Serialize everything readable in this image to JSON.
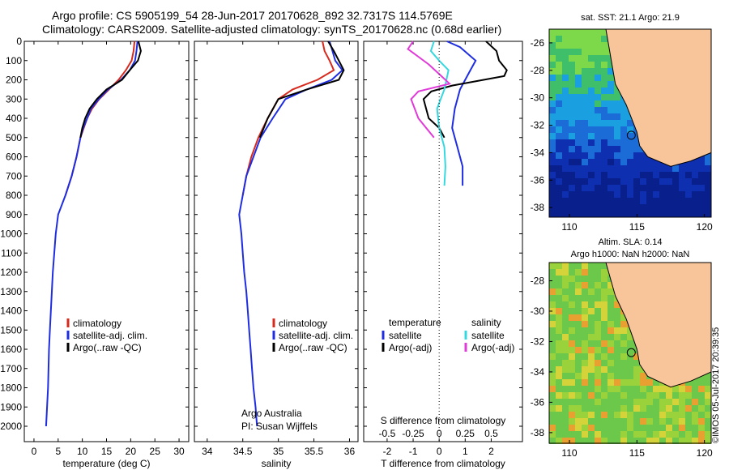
{
  "header": {
    "line1": "Argo profile: CS 5905199_54 28-Jun-2017 20170628_892 32.7317S 114.5769E",
    "line2": "Climatology: CARS2009. Satellite-adjusted climatology: synTS_20170628.nc (0.68d earlier)"
  },
  "colors": {
    "climatology": "#d62a1e",
    "satellite": "#1f2de0",
    "argo": "#000000",
    "sal_satellite": "#36d8e0",
    "sal_argo": "#e03ad8",
    "land": "#f8c49a"
  },
  "depth_ticks": [
    "0",
    "100",
    "200",
    "300",
    "400",
    "500",
    "600",
    "700",
    "800",
    "900",
    "1000",
    "1100",
    "1200",
    "1300",
    "1400",
    "1500",
    "1600",
    "1700",
    "1800",
    "1900",
    "2000"
  ],
  "chart_data": [
    {
      "type": "line",
      "xlabel": "temperature (deg C)",
      "xticks": [
        "0",
        "5",
        "10",
        "15",
        "20",
        "25",
        "30"
      ],
      "xlim": [
        -2,
        32
      ],
      "ylim": [
        0,
        2080
      ],
      "legend": [
        "climatology",
        "satellite-adj. clim.",
        "Argo(..raw -QC)"
      ],
      "series": [
        {
          "name": "climatology",
          "points": [
            [
              20.8,
              0
            ],
            [
              20.6,
              50
            ],
            [
              20.2,
              100
            ],
            [
              19.0,
              150
            ],
            [
              17.5,
              200
            ],
            [
              15.5,
              250
            ],
            [
              13.5,
              300
            ],
            [
              12.0,
              350
            ],
            [
              11.0,
              400
            ],
            [
              10.3,
              450
            ],
            [
              9.6,
              500
            ],
            [
              8.8,
              600
            ],
            [
              7.8,
              700
            ],
            [
              6.5,
              800
            ]
          ]
        },
        {
          "name": "satellite-adj. clim.",
          "points": [
            [
              21.4,
              0
            ],
            [
              21.2,
              50
            ],
            [
              20.9,
              100
            ],
            [
              19.8,
              150
            ],
            [
              18.0,
              200
            ],
            [
              15.3,
              250
            ],
            [
              13.4,
              300
            ],
            [
              11.8,
              350
            ],
            [
              11.0,
              400
            ],
            [
              10.2,
              450
            ],
            [
              9.6,
              500
            ],
            [
              8.8,
              600
            ],
            [
              7.8,
              700
            ],
            [
              6.5,
              800
            ],
            [
              5.0,
              900
            ],
            [
              4.5,
              1000
            ],
            [
              4.2,
              1100
            ],
            [
              3.9,
              1200
            ],
            [
              3.7,
              1300
            ],
            [
              3.5,
              1400
            ],
            [
              3.3,
              1500
            ],
            [
              3.1,
              1600
            ],
            [
              3.0,
              1700
            ],
            [
              2.9,
              1800
            ],
            [
              2.7,
              1900
            ],
            [
              2.5,
              2000
            ]
          ]
        },
        {
          "name": "Argo(..raw -QC)",
          "points": [
            [
              21.6,
              0
            ],
            [
              22.1,
              50
            ],
            [
              21.5,
              100
            ],
            [
              19.8,
              150
            ],
            [
              18.2,
              200
            ],
            [
              15.0,
              250
            ],
            [
              13.0,
              300
            ],
            [
              11.5,
              350
            ],
            [
              10.6,
              400
            ],
            [
              10.0,
              450
            ],
            [
              9.6,
              500
            ]
          ]
        }
      ]
    },
    {
      "type": "line",
      "xlabel": "salinity",
      "xticks": [
        "34",
        "34.5",
        "35",
        "35.5",
        "36"
      ],
      "xlim": [
        33.82,
        36.12
      ],
      "ylim": [
        0,
        2080
      ],
      "legend": [
        "climatology",
        "satellite-adj. clim.",
        "Argo(..raw -QC)"
      ],
      "annotation_1": "Argo Australia",
      "annotation_2": "PI: Susan Wijffels",
      "series": [
        {
          "name": "climatology",
          "points": [
            [
              35.62,
              0
            ],
            [
              35.65,
              50
            ],
            [
              35.72,
              100
            ],
            [
              35.78,
              150
            ],
            [
              35.55,
              200
            ],
            [
              35.2,
              250
            ],
            [
              35.0,
              300
            ],
            [
              34.85,
              400
            ],
            [
              34.72,
              500
            ],
            [
              34.62,
              600
            ],
            [
              34.55,
              700
            ],
            [
              34.5,
              800
            ]
          ]
        },
        {
          "name": "satellite-adj. clim.",
          "points": [
            [
              35.72,
              0
            ],
            [
              35.76,
              50
            ],
            [
              35.8,
              100
            ],
            [
              35.9,
              150
            ],
            [
              35.75,
              200
            ],
            [
              35.4,
              250
            ],
            [
              35.1,
              300
            ],
            [
              34.92,
              400
            ],
            [
              34.75,
              500
            ],
            [
              34.65,
              600
            ],
            [
              34.55,
              700
            ],
            [
              34.5,
              800
            ],
            [
              34.45,
              900
            ],
            [
              34.48,
              1000
            ],
            [
              34.5,
              1100
            ],
            [
              34.52,
              1200
            ],
            [
              34.55,
              1300
            ],
            [
              34.57,
              1400
            ],
            [
              34.59,
              1500
            ],
            [
              34.61,
              1600
            ],
            [
              34.63,
              1700
            ],
            [
              34.65,
              1800
            ],
            [
              34.68,
              1900
            ],
            [
              34.7,
              2000
            ]
          ]
        },
        {
          "name": "Argo(..raw -QC)",
          "points": [
            [
              35.7,
              0
            ],
            [
              35.78,
              50
            ],
            [
              35.85,
              100
            ],
            [
              35.92,
              150
            ],
            [
              35.85,
              200
            ],
            [
              35.4,
              250
            ],
            [
              35.0,
              300
            ],
            [
              34.85,
              400
            ],
            [
              34.74,
              500
            ]
          ]
        }
      ]
    },
    {
      "type": "line",
      "xlabel": "T difference from climatology",
      "xlabel_top": "S difference from climatology",
      "xticks": [
        "-2",
        "-1",
        "0",
        "1",
        "2"
      ],
      "xticks_top": [
        "-0.5",
        "-0.25",
        "0",
        "0.25",
        "0.5"
      ],
      "xlim": [
        -2.9,
        3.2
      ],
      "ylim": [
        0,
        2080
      ],
      "legend_temperature": "temperature",
      "legend_salinity": "salinity",
      "legend_items": [
        "satellite",
        "Argo(-adj)",
        "satellite",
        "Argo(-adj)"
      ],
      "series": [
        {
          "name": "satellite",
          "points": [
            [
              0.3,
              0
            ],
            [
              0.8,
              30
            ],
            [
              1.4,
              100
            ],
            [
              1.2,
              150
            ],
            [
              0.8,
              250
            ],
            [
              0.6,
              350
            ],
            [
              0.5,
              450
            ],
            [
              0.7,
              550
            ],
            [
              0.9,
              650
            ],
            [
              0.9,
              750
            ]
          ]
        },
        {
          "name": "Argo(-adj)",
          "points": [
            [
              1.8,
              0
            ],
            [
              2.2,
              50
            ],
            [
              2.3,
              100
            ],
            [
              2.6,
              150
            ],
            [
              2.5,
              180
            ],
            [
              0.5,
              230
            ],
            [
              -0.3,
              260
            ],
            [
              -0.6,
              300
            ],
            [
              -0.4,
              400
            ],
            [
              0.0,
              450
            ],
            [
              0.2,
              500
            ]
          ]
        },
        {
          "name": "satellite",
          "points": [
            [
              -0.05,
              0
            ],
            [
              -0.08,
              50
            ],
            [
              0.0,
              100
            ],
            [
              0.09,
              150
            ],
            [
              0.05,
              250
            ],
            [
              -0.02,
              350
            ],
            [
              0.0,
              450
            ],
            [
              0.05,
              550
            ],
            [
              0.06,
              650
            ],
            [
              0.05,
              750
            ]
          ]
        },
        {
          "name": "Argo(-adj)",
          "points": [
            [
              -0.25,
              0
            ],
            [
              -0.3,
              40
            ],
            [
              -0.2,
              80
            ],
            [
              -0.1,
              120
            ],
            [
              0.0,
              170
            ],
            [
              0.1,
              220
            ],
            [
              -0.2,
              260
            ],
            [
              -0.27,
              300
            ],
            [
              -0.2,
              400
            ],
            [
              -0.05,
              500
            ]
          ]
        }
      ]
    }
  ],
  "maps": {
    "sst_title": "sat. SST: 21.1  Argo: 21.9",
    "sla_title_1": "Altim. SLA: 0.14",
    "sla_title_2": "Argo h1000: NaN h2000: NaN",
    "yticks": [
      "-26",
      "-28",
      "-30",
      "-32",
      "-34",
      "-36",
      "-38"
    ],
    "yticks_sla": [
      "-28",
      "-30",
      "-32",
      "-34",
      "-36",
      "-38"
    ],
    "xticks": [
      "110",
      "115",
      "120"
    ],
    "stamp": "©IMOS 05-Jul-2017 20:39:35"
  }
}
